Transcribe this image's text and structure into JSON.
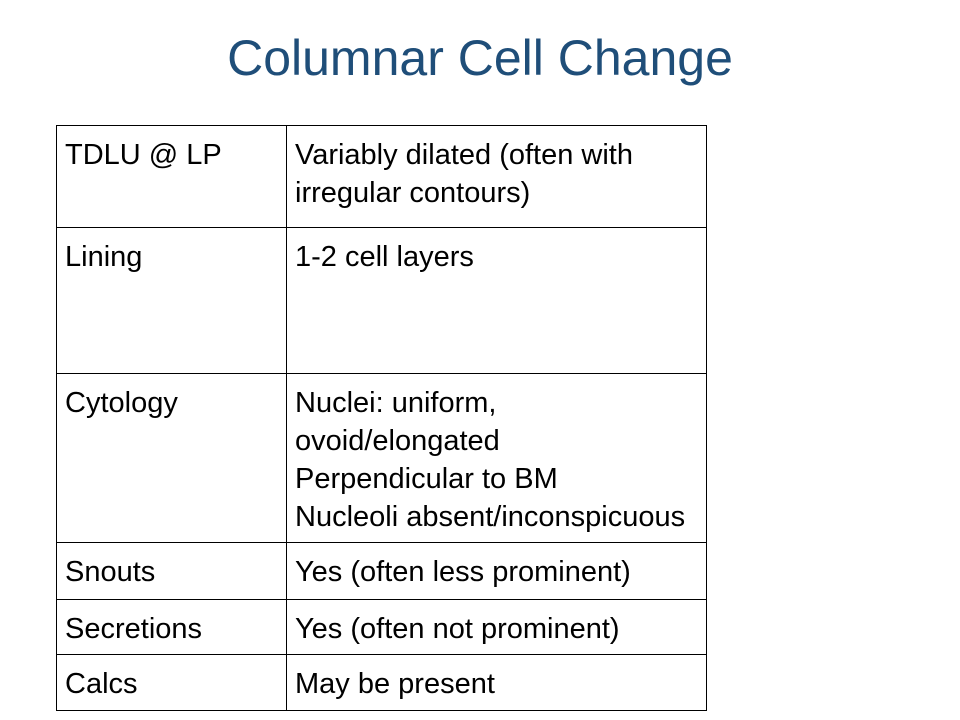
{
  "title": "Columnar Cell Change",
  "table": {
    "rows": [
      {
        "label": "TDLU @ LP",
        "lines": [
          "Variably dilated (often with irregular contours)"
        ]
      },
      {
        "label": "Lining",
        "lines": [
          "1-2 cell layers"
        ]
      },
      {
        "label": "Cytology",
        "lines": [
          "Nuclei: uniform, ovoid/elongated",
          "Perpendicular to BM",
          "Nucleoli absent/inconspicuous"
        ]
      },
      {
        "label": "Snouts",
        "lines": [
          "Yes (often less prominent)"
        ]
      },
      {
        "label": "Secretions",
        "lines": [
          "Yes (often not prominent)"
        ]
      },
      {
        "label": "Calcs",
        "lines": [
          "May be present"
        ]
      }
    ]
  }
}
